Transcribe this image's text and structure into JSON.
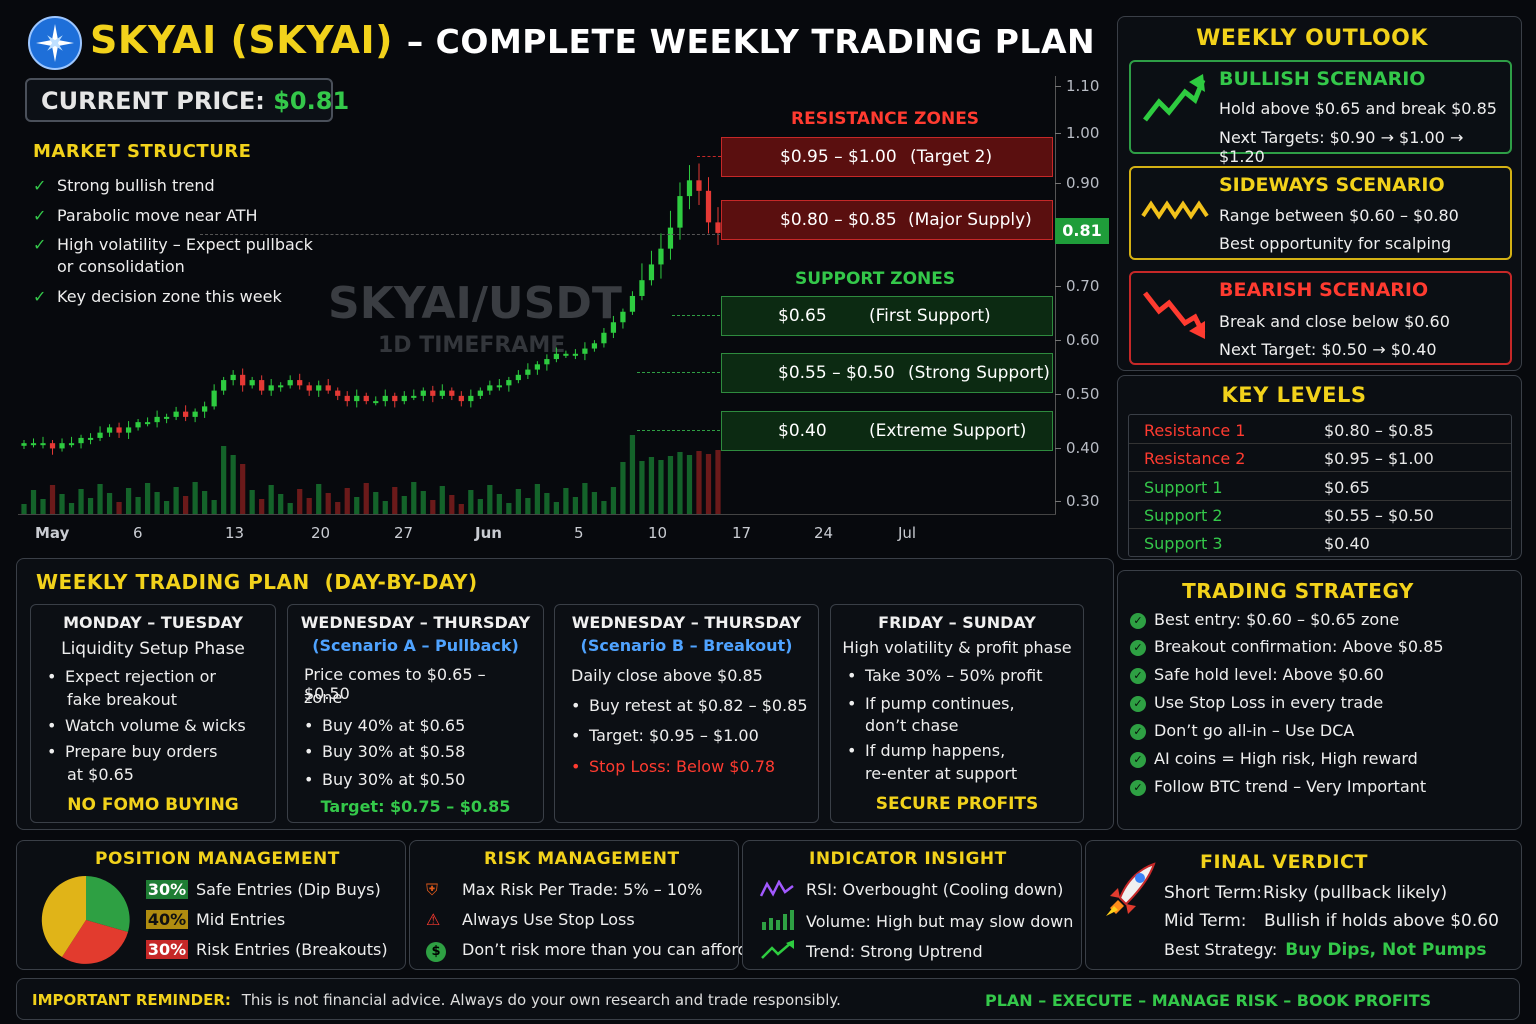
{
  "header": {
    "title_coin": "SKYAI (SKYAI)",
    "title_rest": "– COMPLETE WEEKLY TRADING PLAN",
    "current_price_label": "CURRENT PRICE:",
    "current_price_value": "$0.81"
  },
  "market_structure": {
    "title": "MARKET STRUCTURE",
    "items": [
      "Strong bullish trend",
      "Parabolic move near ATH",
      "High volatility – Expect pullback",
      "or consolidation",
      "Key decision zone this week"
    ]
  },
  "chart": {
    "watermark_pair": "SKYAI/USDT",
    "watermark_tf": "1D TIMEFRAME",
    "price_tag": "0.81",
    "resistance_title": "RESISTANCE ZONES",
    "support_title": "SUPPORT ZONES",
    "resistance": [
      {
        "range": "$0.95 – $1.00",
        "note": "(Target 2)"
      },
      {
        "range": "$0.80 – $0.85",
        "note": "(Major Supply)"
      }
    ],
    "support": [
      {
        "range": "$0.65",
        "note": "(First Support)"
      },
      {
        "range": "$0.55 – $0.50",
        "note": "(Strong Support)"
      },
      {
        "range": "$0.40",
        "note": "(Extreme Support)"
      }
    ]
  },
  "chart_data": {
    "type": "candlestick",
    "title": "SKYAI/USDT",
    "subtitle": "1D TIMEFRAME",
    "y_ticks": [
      "1.10",
      "1.00",
      "0.90",
      "0.70",
      "0.60",
      "0.50",
      "0.40",
      "0.30"
    ],
    "x_ticks": [
      "May",
      "6",
      "13",
      "20",
      "27",
      "Jun",
      "5",
      "10",
      "17",
      "24",
      "Jul"
    ],
    "ylim": [
      0.28,
      1.12
    ],
    "closes": [
      0.41,
      0.41,
      0.41,
      0.4,
      0.41,
      0.41,
      0.42,
      0.42,
      0.43,
      0.44,
      0.43,
      0.44,
      0.45,
      0.45,
      0.46,
      0.46,
      0.47,
      0.46,
      0.47,
      0.48,
      0.51,
      0.53,
      0.54,
      0.52,
      0.53,
      0.51,
      0.52,
      0.52,
      0.53,
      0.52,
      0.51,
      0.52,
      0.51,
      0.5,
      0.49,
      0.5,
      0.49,
      0.49,
      0.5,
      0.49,
      0.5,
      0.5,
      0.51,
      0.5,
      0.51,
      0.5,
      0.49,
      0.5,
      0.51,
      0.52,
      0.52,
      0.53,
      0.54,
      0.55,
      0.56,
      0.57,
      0.58,
      0.58,
      0.58,
      0.59,
      0.6,
      0.62,
      0.64,
      0.66,
      0.69,
      0.72,
      0.75,
      0.78,
      0.82,
      0.88,
      0.91,
      0.89,
      0.83,
      0.81
    ]
  },
  "weekly_outlook": {
    "title": "WEEKLY OUTLOOK",
    "bullish": {
      "title": "BULLISH SCENARIO",
      "line1": "Hold above $0.65 and break $0.85",
      "line2": "Next Targets: $0.90 → $1.00 → $1.20"
    },
    "sideways": {
      "title": "SIDEWAYS SCENARIO",
      "line1": "Range between $0.60 – $0.80",
      "line2": "Best opportunity for scalping"
    },
    "bearish": {
      "title": "BEARISH SCENARIO",
      "line1": "Break and close below $0.60",
      "line2": "Next Target: $0.50 → $0.40"
    }
  },
  "key_levels": {
    "title": "KEY LEVELS",
    "rows": [
      {
        "name": "Resistance 1",
        "value": "$0.80 – $0.85"
      },
      {
        "name": "Resistance 2",
        "value": "$0.95 – $1.00"
      },
      {
        "name": "Support 1",
        "value": "$0.65"
      },
      {
        "name": "Support 2",
        "value": "$0.55 – $0.50"
      },
      {
        "name": "Support 3",
        "value": "$0.40"
      }
    ]
  },
  "weekly_plan": {
    "title": "WEEKLY TRADING PLAN  (DAY-BY-DAY)",
    "mon": {
      "title": "MONDAY – TUESDAY",
      "sub": "Liquidity Setup Phase",
      "b1a": "Expect rejection or",
      "b1b": "fake breakout",
      "b2": "Watch volume & wicks",
      "b3a": "Prepare buy orders",
      "b3b": "at $0.65",
      "footer": "NO FOMO BUYING"
    },
    "wedA": {
      "title": "WEDNESDAY – THURSDAY",
      "sub": "(Scenario A – Pullback)",
      "l1": "Price comes to $0.65 – $0.50",
      "l2": "zone",
      "b1": "Buy 40% at $0.65",
      "b2": "Buy 30% at $0.58",
      "b3": "Buy 30% at $0.50",
      "footer": "Target: $0.75 – $0.85"
    },
    "wedB": {
      "title": "WEDNESDAY – THURSDAY",
      "sub": "(Scenario B – Breakout)",
      "l1": "Daily close above $0.85",
      "b1": "Buy retest at $0.82 – $0.85",
      "b2": "Target: $0.95 – $1.00",
      "b3": "Stop Loss: Below $0.78"
    },
    "fri": {
      "title": "FRIDAY – SUNDAY",
      "sub": "High volatility & profit phase",
      "b1": "Take 30% – 50% profit",
      "b2a": "If pump continues,",
      "b2b": "don’t chase",
      "b3a": "If dump happens,",
      "b3b": "re-enter at support",
      "footer": "SECURE PROFITS"
    }
  },
  "trading_strategy": {
    "title": "TRADING STRATEGY",
    "items": [
      "Best entry: $0.60 – $0.65 zone",
      "Breakout confirmation: Above $0.85",
      "Safe hold level: Above $0.60",
      "Use Stop Loss in every trade",
      "Don’t go all-in – Use DCA",
      "AI coins = High risk, High reward",
      "Follow BTC trend – Very Important"
    ]
  },
  "position_management": {
    "title": "POSITION MANAGEMENT",
    "rows": [
      {
        "pct": "30%",
        "label": "Safe Entries (Dip Buys)",
        "color": "#2ea043"
      },
      {
        "pct": "40%",
        "label": "Mid Entries",
        "color": "#e0b418"
      },
      {
        "pct": "30%",
        "label": "Risk Entries (Breakouts)",
        "color": "#e23b2e"
      }
    ]
  },
  "risk_management": {
    "title": "RISK MANAGEMENT",
    "items": [
      "Max Risk Per Trade: 5% – 10%",
      "Always Use Stop Loss",
      "Don’t risk more than you can afford"
    ]
  },
  "indicator_insight": {
    "title": "INDICATOR INSIGHT",
    "items": [
      "RSI: Overbought (Cooling down)",
      "Volume: High but may slow down",
      "Trend: Strong Uptrend"
    ]
  },
  "final_verdict": {
    "title": "FINAL VERDICT",
    "short_label": "Short Term:",
    "short_value": "Risky (pullback likely)",
    "mid_label": "Mid Term:",
    "mid_value": "Bullish if holds above $0.60",
    "best_label": "Best Strategy:",
    "best_value": "Buy Dips, Not Pumps"
  },
  "footer": {
    "label": "IMPORTANT REMINDER:",
    "text": "This is not financial advice. Always do your own research and trade responsibly.",
    "slogan": "PLAN – EXECUTE – MANAGE RISK – BOOK PROFITS"
  }
}
